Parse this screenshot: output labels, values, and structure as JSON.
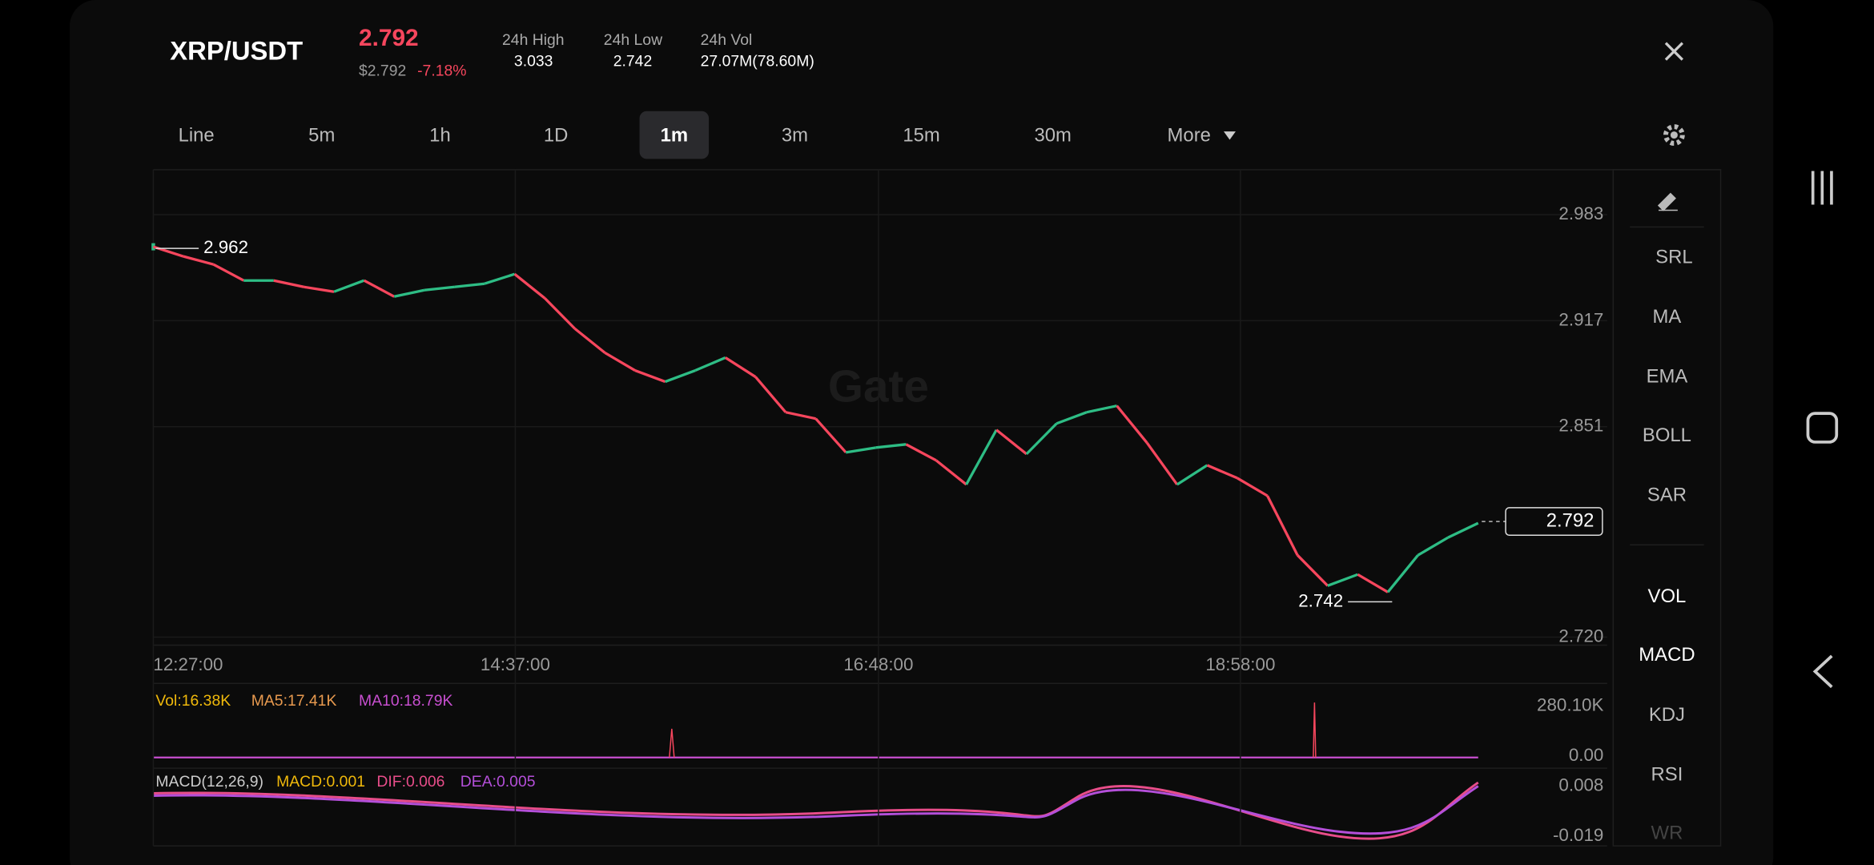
{
  "header": {
    "pair": "XRP/USDT",
    "price": "2.792",
    "price_usd": "$2.792",
    "change": "-7.18%",
    "stats": [
      {
        "label": "24h High",
        "value": "3.033"
      },
      {
        "label": "24h Low",
        "value": "2.742"
      },
      {
        "label": "24h Vol",
        "value": "27.07M(78.60M)"
      }
    ]
  },
  "tabs": [
    "Line",
    "5m",
    "1h",
    "1D",
    "1m",
    "3m",
    "15m",
    "30m",
    "More"
  ],
  "chart": {
    "watermark": "Gate",
    "ylim": [
      2.715,
      3.011
    ],
    "yticks": [
      2.983,
      2.917,
      2.851,
      {
        "value": 2.72,
        "label": "2.720"
      }
    ],
    "xticks": [
      "12:27:00",
      "14:37:00",
      "16:48:00",
      "18:58:00"
    ],
    "current_price": 2.792,
    "high_marker": 2.962,
    "low_marker": 2.742,
    "up_color": "#2ebd85",
    "down_color": "#f6465d",
    "price": [
      2.963,
      2.957,
      2.952,
      2.942,
      2.942,
      2.938,
      2.935,
      2.942,
      2.932,
      2.936,
      2.938,
      2.94,
      2.946,
      2.931,
      2.912,
      2.897,
      2.886,
      2.879,
      2.886,
      2.894,
      2.882,
      2.86,
      2.856,
      2.835,
      2.838,
      2.84,
      2.83,
      2.815,
      2.849,
      2.834,
      2.853,
      2.86,
      2.864,
      2.841,
      2.815,
      2.827,
      2.819,
      2.808,
      2.771,
      2.752,
      2.759,
      2.748,
      2.771,
      2.782,
      2.791
    ]
  },
  "volume": {
    "legend": [
      "Vol:16.38K",
      "MA5:17.41K",
      "MA10:18.79K"
    ],
    "ticks": [
      "280.10K",
      "0.00"
    ]
  },
  "macd": {
    "legend": [
      "MACD(12,26,9)",
      "MACD:0.001",
      "DIF:0.006",
      "DEA:0.005"
    ],
    "ticks": [
      "0.008",
      "-0.019"
    ]
  },
  "indicators": [
    "SRL",
    "MA",
    "EMA",
    "BOLL",
    "SAR"
  ],
  "sub_indicators": [
    "VOL",
    "MACD",
    "KDJ",
    "RSI",
    "WR"
  ]
}
